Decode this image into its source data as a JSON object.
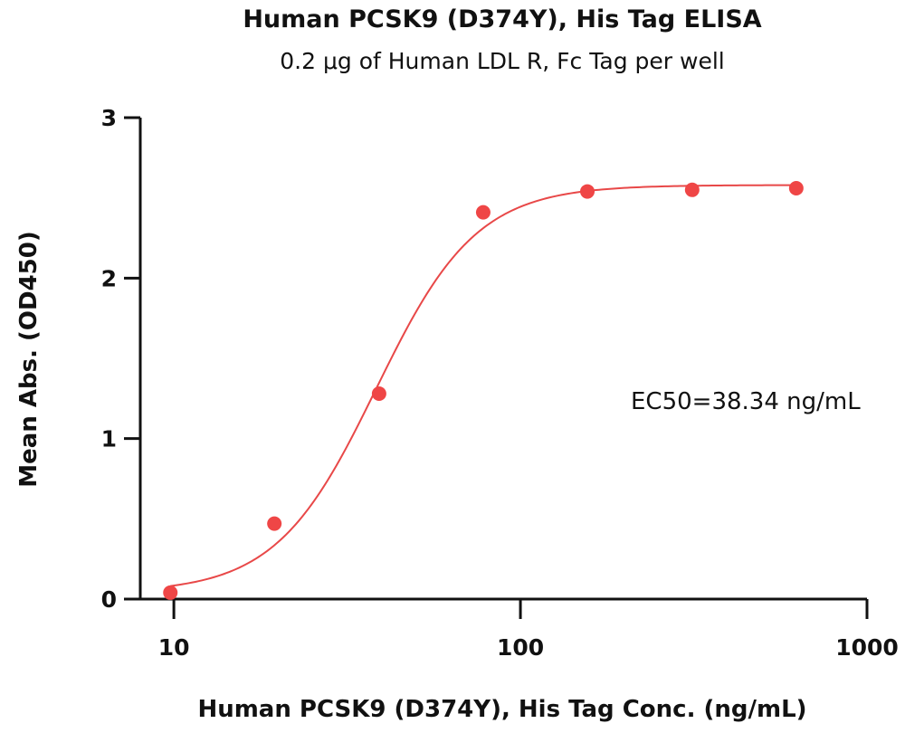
{
  "chart_data": {
    "type": "scatter",
    "title": "Human PCSK9 (D374Y), His Tag ELISA",
    "subtitle": "0.2 μg of Human LDL R, Fc Tag per well",
    "xlabel": "Human PCSK9 (D374Y), His Tag Conc. (ng/mL)",
    "ylabel": "Mean Abs. (OD450)",
    "x_scale": "log",
    "xlim": [
      8,
      1000
    ],
    "ylim": [
      0,
      3
    ],
    "x_ticks": [
      10,
      100,
      1000
    ],
    "x_tick_labels": [
      "10",
      "100",
      "1000"
    ],
    "y_ticks": [
      0,
      1,
      2,
      3
    ],
    "y_tick_labels": [
      "0",
      "1",
      "2",
      "3"
    ],
    "grid": false,
    "points": [
      {
        "x": 9.77,
        "y": 0.04
      },
      {
        "x": 19.5,
        "y": 0.47
      },
      {
        "x": 39.1,
        "y": 1.28
      },
      {
        "x": 78.1,
        "y": 2.41
      },
      {
        "x": 156,
        "y": 2.54
      },
      {
        "x": 313,
        "y": 2.55
      },
      {
        "x": 625,
        "y": 2.56
      }
    ],
    "fit": {
      "model": "4PL",
      "bottom": 0.04,
      "top": 2.58,
      "ec50": 38.34,
      "hill": 3.0,
      "x_range": [
        9.77,
        625
      ]
    },
    "annotation": "EC50=38.34 ng/mL",
    "colors": {
      "points": "#ef4646",
      "curve": "#e84848",
      "axis": "#111111"
    }
  }
}
